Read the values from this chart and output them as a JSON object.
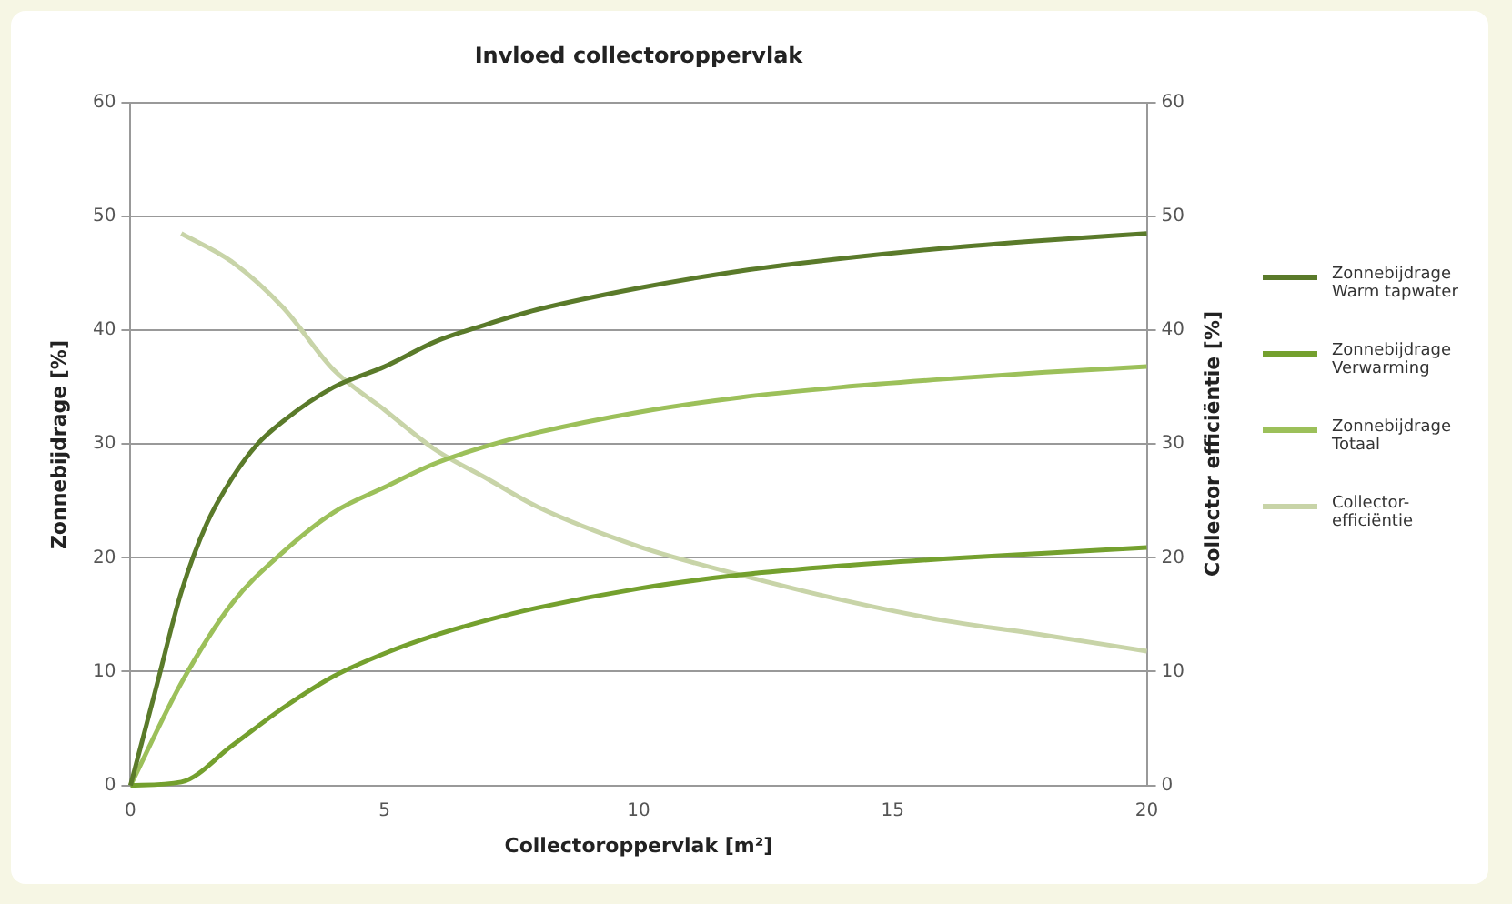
{
  "chart_data": {
    "type": "line",
    "title": "Invloed collectoroppervlak",
    "xlabel": "Collectoroppervlak [m²]",
    "ylabel": "Zonnebijdrage [%]",
    "y2label": "Collector efficiëntie [%]",
    "xlim": [
      0,
      20
    ],
    "xticks": [
      0,
      5,
      10,
      15,
      20
    ],
    "ylim": [
      0,
      60
    ],
    "yticks": [
      0,
      10,
      20,
      30,
      40,
      50,
      60
    ],
    "y2lim": [
      0,
      60
    ],
    "y2ticks": [
      0,
      10,
      20,
      30,
      40,
      50,
      60
    ],
    "grid": "y",
    "legend": "right",
    "marker": "none",
    "line_style": "solid",
    "series": [
      {
        "name": "Zonnebijdrage Warm tapwater",
        "color": "#5a7a2a",
        "x": [
          0,
          0.5,
          1,
          1.5,
          2,
          2.5,
          3,
          4,
          5,
          6,
          7,
          8,
          10,
          12,
          14,
          16,
          18,
          20
        ],
        "values": [
          0,
          8.5,
          17,
          23,
          27,
          30,
          32,
          35,
          36.8,
          39,
          40.5,
          41.8,
          43.7,
          45.2,
          46.3,
          47.2,
          47.9,
          48.5
        ]
      },
      {
        "name": "Zonnebijdrage Verwarming",
        "color": "#74a02e",
        "x": [
          0,
          1,
          2,
          3,
          4,
          5,
          6,
          7,
          8,
          10,
          12,
          14,
          16,
          18,
          20
        ],
        "values": [
          0,
          0.3,
          3.5,
          6.8,
          9.6,
          11.6,
          13.2,
          14.5,
          15.6,
          17.3,
          18.5,
          19.3,
          19.9,
          20.4,
          20.9
        ]
      },
      {
        "name": "Zonnebijdrage Totaal",
        "color": "#9cc05a",
        "x": [
          0,
          1,
          2,
          3,
          4,
          5,
          6,
          7,
          8,
          10,
          12,
          14,
          16,
          18,
          20
        ],
        "values": [
          0,
          9,
          16,
          20.5,
          24,
          26.2,
          28.3,
          29.8,
          31,
          32.8,
          34.1,
          35,
          35.7,
          36.3,
          36.8
        ]
      },
      {
        "name": "Collector-efficiëntie",
        "color": "#c8d4a8",
        "axis": "y2",
        "x": [
          1,
          2,
          3,
          4,
          5,
          6,
          7,
          8,
          10,
          12,
          14,
          16,
          18,
          20
        ],
        "values": [
          48.5,
          46,
          42,
          36.5,
          33,
          29.5,
          27,
          24.5,
          21,
          18.5,
          16.3,
          14.5,
          13.2,
          11.8
        ]
      }
    ]
  }
}
